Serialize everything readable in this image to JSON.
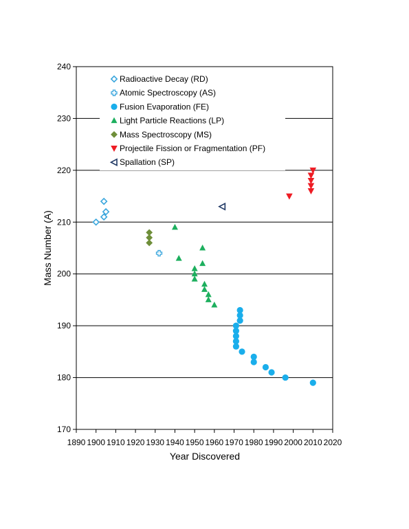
{
  "chart_data": {
    "type": "scatter",
    "title": "",
    "xlabel": "Year Discovered",
    "ylabel": "Mass Number (A)",
    "xlim": [
      1890,
      2020
    ],
    "ylim": [
      170,
      240
    ],
    "xticks": [
      1890,
      1900,
      1910,
      1920,
      1930,
      1940,
      1950,
      1960,
      1970,
      1980,
      1990,
      2000,
      2010,
      2020
    ],
    "yticks": [
      170,
      180,
      190,
      200,
      210,
      220,
      230,
      240
    ],
    "grid": "horizontal",
    "legend_position": "top-left",
    "series": [
      {
        "name": "Radioactive Decay (RD)",
        "marker": "diamond-open",
        "color": "#3AA6DD",
        "points": [
          [
            1900,
            210
          ],
          [
            1904,
            211
          ],
          [
            1904,
            214
          ],
          [
            1905,
            212
          ]
        ]
      },
      {
        "name": "Atomic Spectroscopy (AS)",
        "marker": "plus-open",
        "color": "#3AA6DD",
        "points": [
          [
            1932,
            204
          ]
        ]
      },
      {
        "name": "Fusion Evaporation (FE)",
        "marker": "circle",
        "color": "#1AAEEB",
        "points": [
          [
            1971,
            186
          ],
          [
            1971,
            187
          ],
          [
            1971,
            188
          ],
          [
            1971,
            189
          ],
          [
            1971,
            190
          ],
          [
            1973,
            191
          ],
          [
            1973,
            192
          ],
          [
            1973,
            193
          ],
          [
            1974,
            185
          ],
          [
            1980,
            183
          ],
          [
            1980,
            184
          ],
          [
            1986,
            182
          ],
          [
            1989,
            181
          ],
          [
            1996,
            180
          ],
          [
            2010,
            179
          ]
        ]
      },
      {
        "name": "Light Particle Reactions (LP)",
        "marker": "triangle-up",
        "color": "#1DAF5E",
        "points": [
          [
            1940,
            209
          ],
          [
            1942,
            203
          ],
          [
            1950,
            199
          ],
          [
            1950,
            200
          ],
          [
            1950,
            201
          ],
          [
            1954,
            202
          ],
          [
            1954,
            205
          ],
          [
            1955,
            197
          ],
          [
            1955,
            198
          ],
          [
            1957,
            195
          ],
          [
            1957,
            196
          ],
          [
            1960,
            194
          ]
        ]
      },
      {
        "name": "Mass Spectroscopy (MS)",
        "marker": "diamond",
        "color": "#6F8F3A",
        "points": [
          [
            1927,
            206
          ],
          [
            1927,
            207
          ],
          [
            1927,
            208
          ]
        ]
      },
      {
        "name": "Projectile Fission or Fragmentation (PF)",
        "marker": "triangle-down",
        "color": "#EE1C24",
        "points": [
          [
            1998,
            215
          ],
          [
            2009,
            216
          ],
          [
            2009,
            217
          ],
          [
            2009,
            218
          ],
          [
            2009,
            219
          ],
          [
            2010,
            220
          ]
        ]
      },
      {
        "name": "Spallation (SP)",
        "marker": "triangle-left-open",
        "color": "#1F3864",
        "points": [
          [
            1964,
            213
          ]
        ]
      }
    ]
  }
}
